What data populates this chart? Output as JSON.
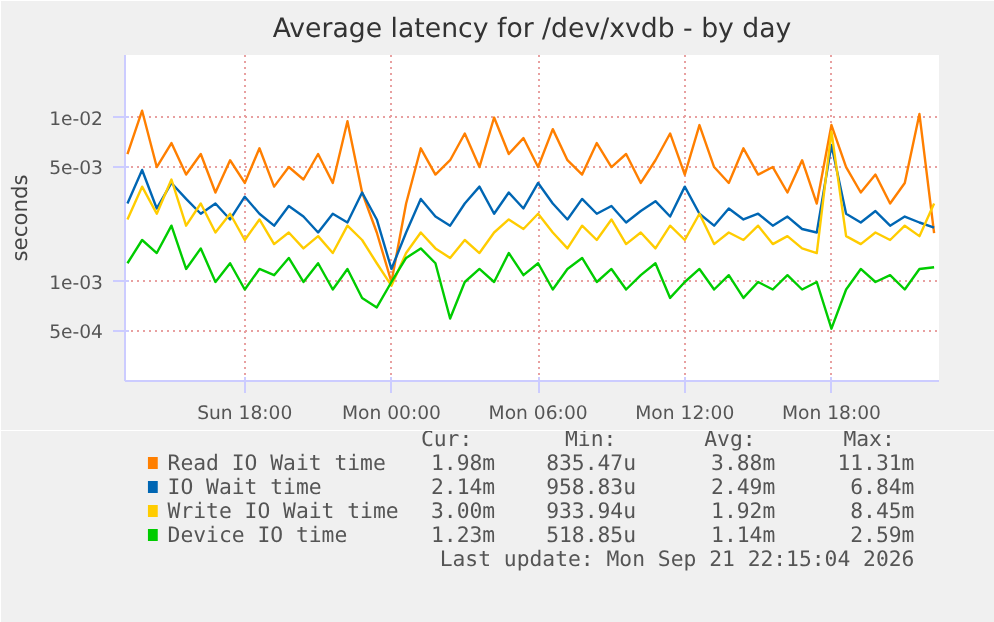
{
  "chart_data": {
    "type": "line",
    "title": "Average latency for /dev/xvdb - by day",
    "ylabel": "seconds",
    "log": "y",
    "grid": true,
    "legend": "bottom",
    "line_style": "solid",
    "x": [
      "2026-09-20T13:12",
      "2026-09-20T13:48",
      "2026-09-20T14:24",
      "2026-09-20T15:00",
      "2026-09-20T15:36",
      "2026-09-20T16:12",
      "2026-09-20T16:48",
      "2026-09-20T17:24",
      "2026-09-20T18:00",
      "2026-09-20T18:36",
      "2026-09-20T19:12",
      "2026-09-20T19:48",
      "2026-09-20T20:24",
      "2026-09-20T21:00",
      "2026-09-20T21:36",
      "2026-09-20T22:12",
      "2026-09-20T22:48",
      "2026-09-20T23:24",
      "2026-09-21T00:00",
      "2026-09-21T00:36",
      "2026-09-21T01:12",
      "2026-09-21T01:48",
      "2026-09-21T02:24",
      "2026-09-21T03:00",
      "2026-09-21T03:36",
      "2026-09-21T04:12",
      "2026-09-21T04:48",
      "2026-09-21T05:24",
      "2026-09-21T06:00",
      "2026-09-21T06:36",
      "2026-09-21T07:12",
      "2026-09-21T07:48",
      "2026-09-21T08:24",
      "2026-09-21T09:00",
      "2026-09-21T09:36",
      "2026-09-21T10:12",
      "2026-09-21T10:48",
      "2026-09-21T11:24",
      "2026-09-21T12:00",
      "2026-09-21T12:36",
      "2026-09-21T13:12",
      "2026-09-21T13:48",
      "2026-09-21T14:24",
      "2026-09-21T15:00",
      "2026-09-21T15:36",
      "2026-09-21T16:12",
      "2026-09-21T16:48",
      "2026-09-21T17:24",
      "2026-09-21T18:00",
      "2026-09-21T18:36",
      "2026-09-21T19:12",
      "2026-09-21T19:48",
      "2026-09-21T20:24",
      "2026-09-21T21:00",
      "2026-09-21T21:36",
      "2026-09-21T22:12"
    ],
    "xlim": [
      "2026-09-20T13:06",
      "2026-09-21T22:24"
    ],
    "xticks": [
      {
        "value": "2026-09-20T18:00",
        "label": "Sun 18:00"
      },
      {
        "value": "2026-09-21T00:00",
        "label": "Mon 00:00"
      },
      {
        "value": "2026-09-21T06:00",
        "label": "Mon 06:00"
      },
      {
        "value": "2026-09-21T12:00",
        "label": "Mon 12:00"
      },
      {
        "value": "2026-09-21T18:00",
        "label": "Mon 18:00"
      }
    ],
    "ylim": [
      0.00025,
      0.024
    ],
    "yticks": [
      {
        "value": 0.0005,
        "label": "5e-04"
      },
      {
        "value": 0.001,
        "label": "1e-03"
      },
      {
        "value": 0.005,
        "label": "5e-03"
      },
      {
        "value": 0.01,
        "label": "1e-02"
      }
    ],
    "series": [
      {
        "name": "Read IO Wait time",
        "color": "#ff7f00",
        "values": [
          0.006,
          0.011,
          0.005,
          0.007,
          0.0045,
          0.006,
          0.0035,
          0.0055,
          0.004,
          0.0065,
          0.0038,
          0.005,
          0.0042,
          0.006,
          0.004,
          0.0095,
          0.0035,
          0.002,
          0.001,
          0.003,
          0.0065,
          0.0045,
          0.0055,
          0.008,
          0.005,
          0.01,
          0.006,
          0.0075,
          0.005,
          0.0085,
          0.0055,
          0.0045,
          0.007,
          0.005,
          0.006,
          0.004,
          0.0055,
          0.008,
          0.0045,
          0.009,
          0.005,
          0.004,
          0.0065,
          0.0045,
          0.005,
          0.0035,
          0.0055,
          0.003,
          0.009,
          0.005,
          0.0035,
          0.0045,
          0.003,
          0.004,
          0.0105,
          0.00198
        ]
      },
      {
        "name": "IO Wait time",
        "color": "#0066b3",
        "values": [
          0.003,
          0.0048,
          0.0028,
          0.004,
          0.0032,
          0.0026,
          0.003,
          0.0024,
          0.0033,
          0.0026,
          0.0022,
          0.0029,
          0.0025,
          0.002,
          0.0026,
          0.0023,
          0.0035,
          0.0024,
          0.0012,
          0.002,
          0.0032,
          0.0025,
          0.0022,
          0.003,
          0.0038,
          0.0026,
          0.0035,
          0.0028,
          0.004,
          0.003,
          0.0024,
          0.0032,
          0.0026,
          0.0029,
          0.0023,
          0.0027,
          0.0031,
          0.0025,
          0.0038,
          0.0026,
          0.0022,
          0.0028,
          0.0024,
          0.0026,
          0.0022,
          0.0025,
          0.0021,
          0.002,
          0.0068,
          0.0026,
          0.0023,
          0.0027,
          0.0022,
          0.0025,
          0.0023,
          0.00214
        ]
      },
      {
        "name": "Write IO Wait time",
        "color": "#ffcc00",
        "values": [
          0.0024,
          0.0038,
          0.0026,
          0.0042,
          0.0022,
          0.003,
          0.002,
          0.0026,
          0.0018,
          0.0024,
          0.0017,
          0.002,
          0.0016,
          0.0019,
          0.0015,
          0.0022,
          0.0018,
          0.0013,
          0.00095,
          0.0015,
          0.002,
          0.0016,
          0.0014,
          0.0018,
          0.0015,
          0.002,
          0.0024,
          0.0021,
          0.0026,
          0.002,
          0.0016,
          0.0022,
          0.0018,
          0.0024,
          0.0017,
          0.002,
          0.0016,
          0.0022,
          0.0018,
          0.0026,
          0.0017,
          0.002,
          0.0018,
          0.0022,
          0.0017,
          0.0019,
          0.0016,
          0.0015,
          0.0082,
          0.0019,
          0.0017,
          0.002,
          0.0018,
          0.0022,
          0.0019,
          0.003
        ]
      },
      {
        "name": "Device IO time",
        "color": "#00cc00",
        "values": [
          0.0013,
          0.0018,
          0.0015,
          0.0022,
          0.0012,
          0.0016,
          0.001,
          0.0013,
          0.0009,
          0.0012,
          0.0011,
          0.0014,
          0.001,
          0.0013,
          0.0009,
          0.0012,
          0.0008,
          0.0007,
          0.001,
          0.0014,
          0.0016,
          0.0013,
          0.0006,
          0.001,
          0.0012,
          0.001,
          0.0015,
          0.0011,
          0.0013,
          0.0009,
          0.0012,
          0.0014,
          0.001,
          0.0012,
          0.0009,
          0.0011,
          0.0013,
          0.0008,
          0.001,
          0.0012,
          0.0009,
          0.0011,
          0.0008,
          0.001,
          0.0009,
          0.0011,
          0.0009,
          0.001,
          0.00052,
          0.0009,
          0.0012,
          0.001,
          0.0011,
          0.0009,
          0.0012,
          0.00123
        ]
      }
    ],
    "annotations": [
      "Cur:",
      "Min:",
      "Avg:",
      "Max:",
      "1.98m",
      "835.47u",
      "3.88m",
      "11.31m",
      "2.14m",
      "958.83u",
      "2.49m",
      "6.84m",
      "3.00m",
      "933.94u",
      "1.92m",
      "8.45m",
      "1.23m",
      "518.85u",
      "1.14m",
      "2.59m",
      "Last update: Mon Sep 21 22:15:04 2026"
    ]
  }
}
